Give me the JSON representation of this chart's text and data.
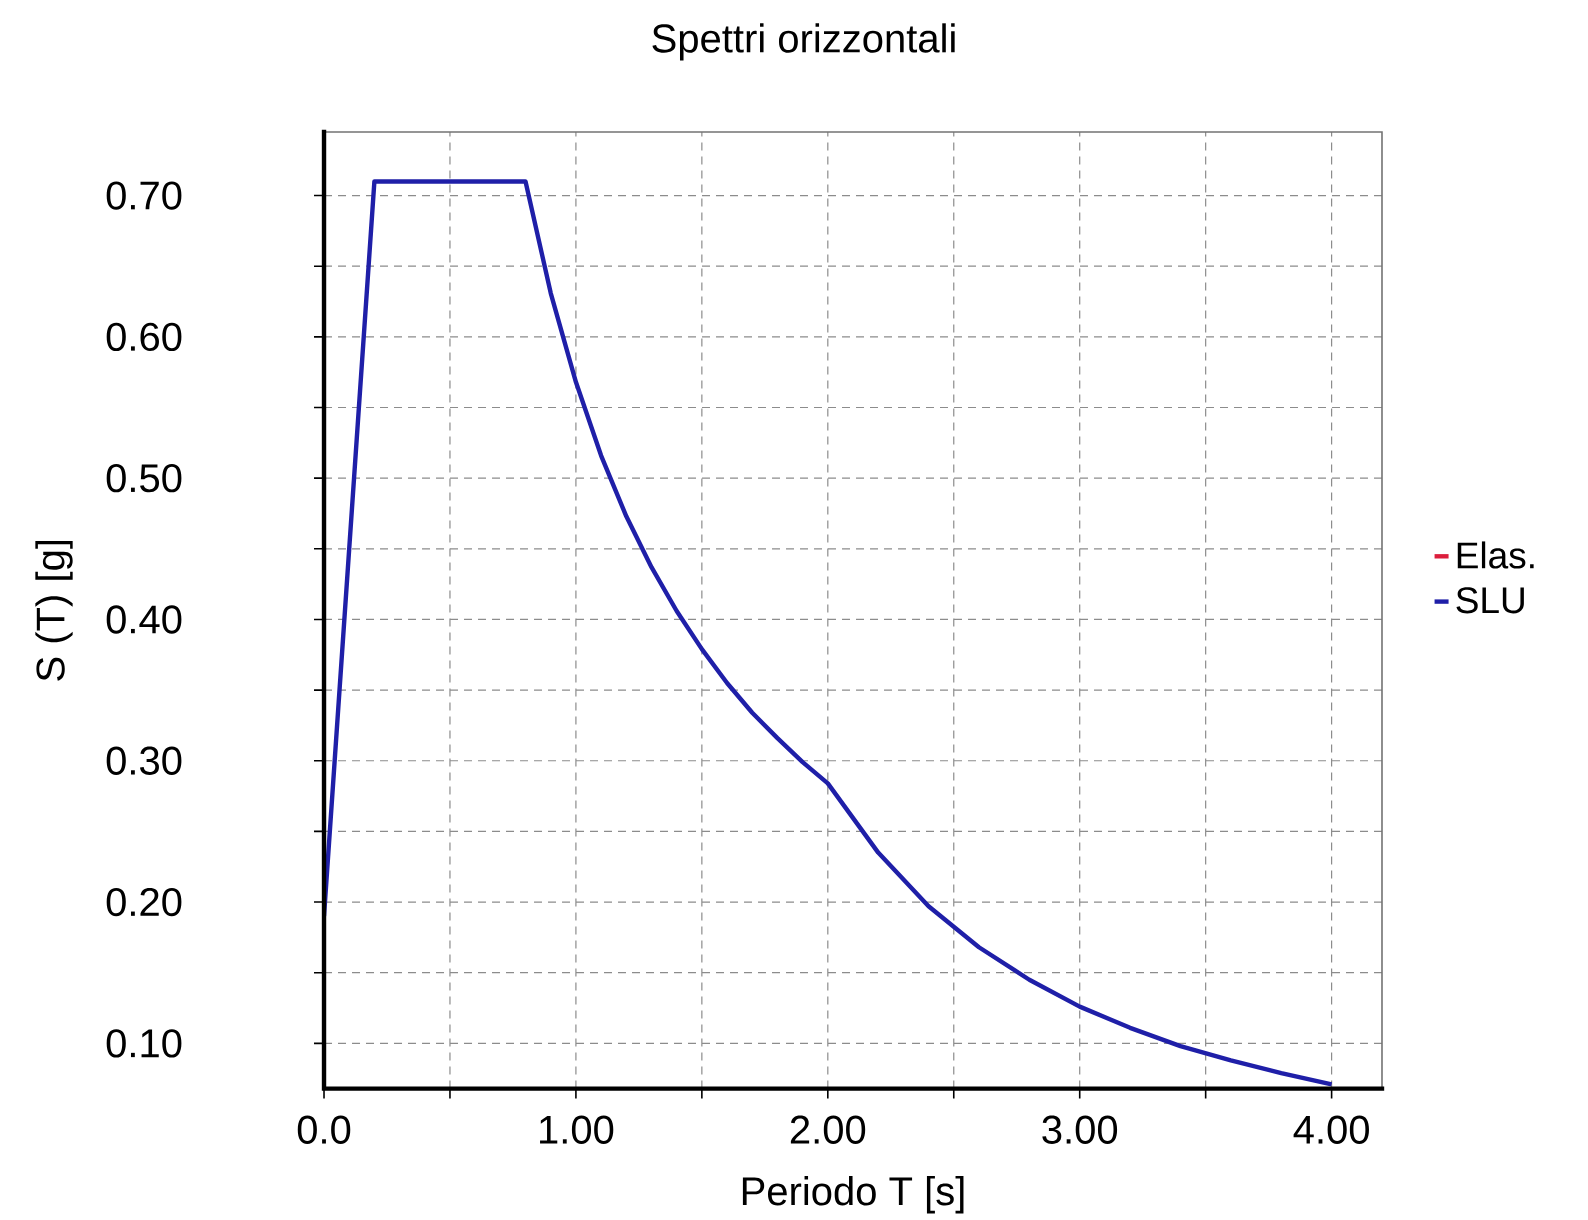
{
  "chart_data": {
    "type": "line",
    "title": "Spettri orizzontali",
    "xlabel": "Periodo T [s]",
    "ylabel": "S (T) [g]",
    "x": [
      0,
      0.2,
      0.8,
      0.9,
      1.0,
      1.1,
      1.2,
      1.3,
      1.4,
      1.5,
      1.6,
      1.7,
      1.8,
      1.9,
      2.0,
      2.2,
      2.4,
      2.6,
      2.8,
      3.0,
      3.2,
      3.4,
      3.6,
      3.8,
      4.0
    ],
    "series": [
      {
        "name": "Elas.",
        "color": "#dc1e3c",
        "values": [
          null,
          null,
          null,
          null,
          null,
          null,
          null,
          null,
          null,
          null,
          null,
          null,
          null,
          null,
          null,
          null,
          null,
          null,
          null,
          null,
          null,
          null,
          null,
          null,
          null
        ]
      },
      {
        "name": "SLU",
        "color": "#1f1fa8",
        "values": [
          0.19,
          0.71,
          0.71,
          0.631,
          0.568,
          0.516,
          0.473,
          0.437,
          0.406,
          0.379,
          0.355,
          0.334,
          0.316,
          0.299,
          0.284,
          0.235,
          0.197,
          0.168,
          0.145,
          0.126,
          0.111,
          0.098,
          0.088,
          0.079,
          0.071
        ]
      }
    ],
    "xlim": [
      0,
      4.2
    ],
    "ylim": [
      0.068,
      0.745
    ],
    "xticks": [
      {
        "value": 0,
        "label": "0.0"
      },
      {
        "value": 0.5,
        "label": null
      },
      {
        "value": 1,
        "label": "1.00"
      },
      {
        "value": 1.5,
        "label": null
      },
      {
        "value": 2,
        "label": "2.00"
      },
      {
        "value": 2.5,
        "label": null
      },
      {
        "value": 3,
        "label": "3.00"
      },
      {
        "value": 3.5,
        "label": null
      },
      {
        "value": 4,
        "label": "4.00"
      }
    ],
    "yticks": [
      {
        "value": 0.1,
        "label": "0.10"
      },
      {
        "value": 0.15,
        "label": null
      },
      {
        "value": 0.2,
        "label": "0.20"
      },
      {
        "value": 0.25,
        "label": null
      },
      {
        "value": 0.3,
        "label": "0.30"
      },
      {
        "value": 0.35,
        "label": null
      },
      {
        "value": 0.4,
        "label": "0.40"
      },
      {
        "value": 0.45,
        "label": null
      },
      {
        "value": 0.5,
        "label": "0.50"
      },
      {
        "value": 0.55,
        "label": null
      },
      {
        "value": 0.6,
        "label": "0.60"
      },
      {
        "value": 0.65,
        "label": null
      },
      {
        "value": 0.7,
        "label": "0.70"
      }
    ],
    "grid": true,
    "legend": "right"
  }
}
